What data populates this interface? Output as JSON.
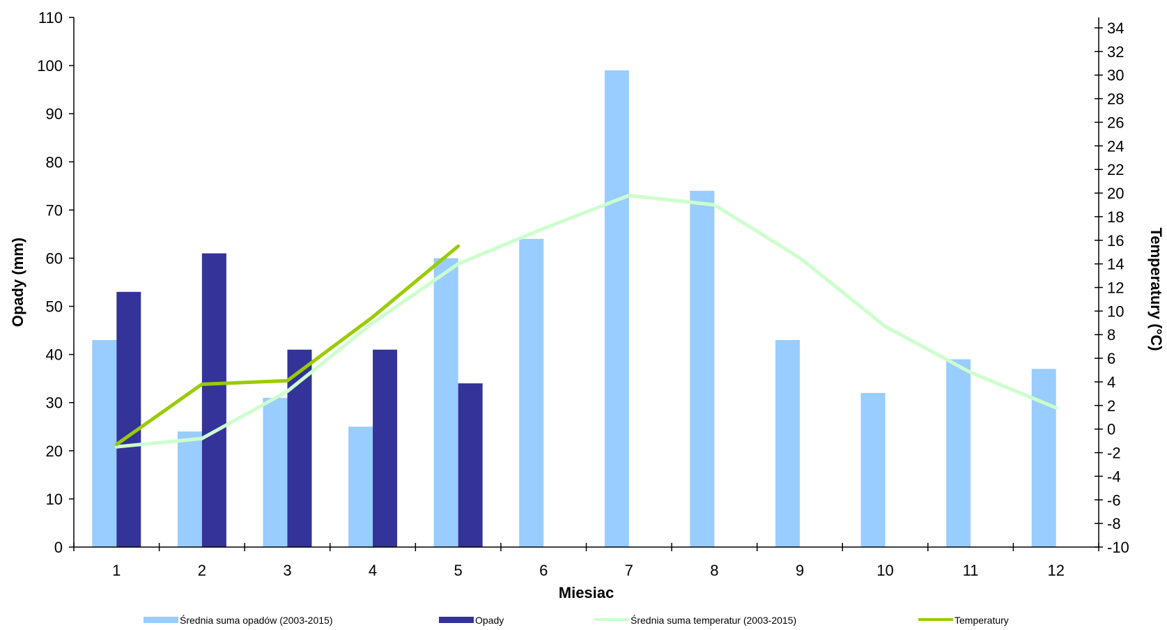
{
  "chart_data": {
    "type": "bar",
    "categories": [
      "1",
      "2",
      "3",
      "4",
      "5",
      "6",
      "7",
      "8",
      "9",
      "10",
      "11",
      "12"
    ],
    "xlabel": "Miesiac",
    "ylabel": "Opady (mm)",
    "y2label": "Temperatury (°C)",
    "ylim": [
      0,
      110
    ],
    "yticks": [
      0,
      10,
      20,
      30,
      40,
      50,
      60,
      70,
      80,
      90,
      100,
      110
    ],
    "y2lim": [
      -10,
      35
    ],
    "y2ticks": [
      -10,
      -8,
      -6,
      -4,
      -2,
      0,
      2,
      4,
      6,
      8,
      10,
      12,
      14,
      16,
      18,
      20,
      22,
      24,
      26,
      28,
      30,
      32,
      34
    ],
    "grid": false,
    "legend_position": "bottom",
    "series": [
      {
        "name": "Średnia suma opadów (2003-2015)",
        "kind": "bar",
        "axis": "left",
        "color": "#99ccff",
        "values": [
          43,
          24,
          31,
          25,
          60,
          64,
          99,
          74,
          43,
          32,
          39,
          37
        ]
      },
      {
        "name": "Opady",
        "kind": "bar",
        "axis": "left",
        "color": "#333399",
        "values": [
          53,
          61,
          41,
          41,
          34,
          null,
          null,
          null,
          null,
          null,
          null,
          null
        ]
      },
      {
        "name": "Średnia suma temperatur (2003-2015)",
        "kind": "line",
        "axis": "right",
        "color": "#ccffcc",
        "values": [
          -1.5,
          -0.8,
          3.2,
          9.0,
          14.0,
          17.0,
          19.8,
          19.0,
          14.5,
          8.7,
          4.8,
          1.8
        ]
      },
      {
        "name": "Temperatury",
        "kind": "line",
        "axis": "right",
        "color": "#99cc00",
        "values": [
          -1.3,
          3.8,
          4.1,
          9.5,
          15.5,
          null,
          null,
          null,
          null,
          null,
          null,
          null
        ]
      }
    ]
  }
}
